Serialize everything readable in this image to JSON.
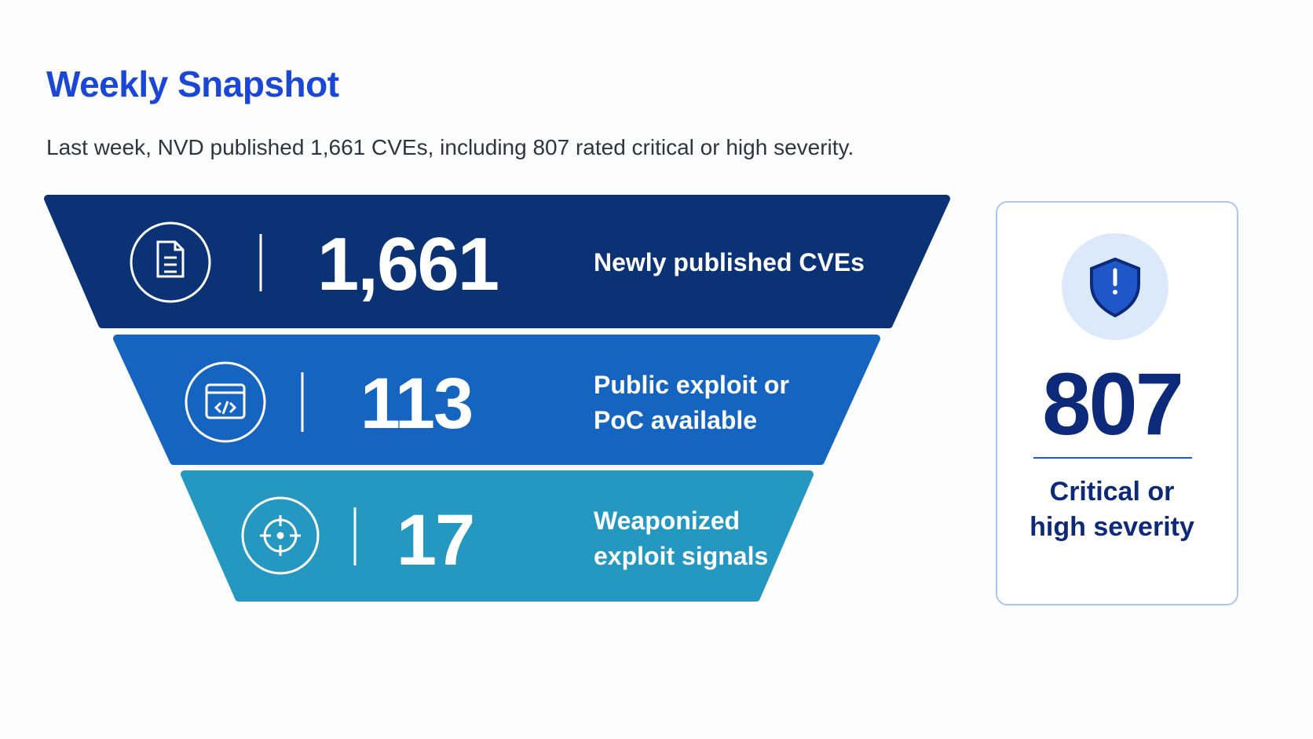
{
  "header": {
    "title": "Weekly Snapshot",
    "subtitle": "Last week, NVD published 1,661 CVEs, including 807 rated critical or high severity."
  },
  "funnel": [
    {
      "value": "1,661",
      "label": "Newly published CVEs"
    },
    {
      "value": "113",
      "label": "Public exploit or PoC available"
    },
    {
      "value": "17",
      "label": "Weaponized exploit signals"
    }
  ],
  "card": {
    "value": "807",
    "label": "Critical or high severity"
  }
}
